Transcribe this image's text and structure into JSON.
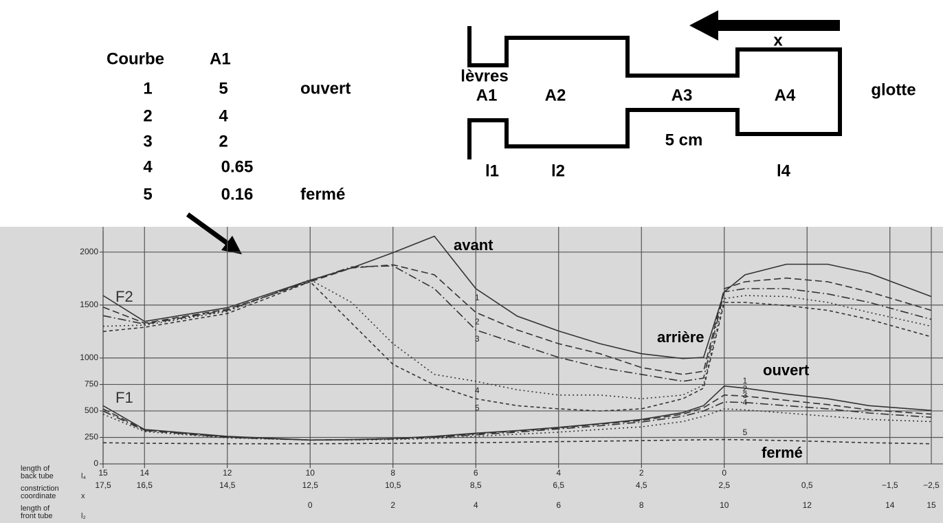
{
  "table": {
    "header": [
      "Courbe",
      "A1"
    ],
    "rows": [
      {
        "courbe": "1",
        "a1": "5",
        "state": "ouvert"
      },
      {
        "courbe": "2",
        "a1": "4"
      },
      {
        "courbe": "3",
        "a1": "2"
      },
      {
        "courbe": "4",
        "a1": "0.65"
      },
      {
        "courbe": "5",
        "a1": "0.16",
        "state": "fermé"
      }
    ]
  },
  "diagram": {
    "lips": "lèvres",
    "glottis": "glotte",
    "direction": "x",
    "length": "5 cm",
    "areas": [
      "A1",
      "A2",
      "A3",
      "A4"
    ],
    "lengths": [
      "l1",
      "l2",
      "l4"
    ]
  },
  "chart_data": {
    "type": "line",
    "annotations": {
      "f2": "F2",
      "f1": "F1",
      "front": "avant",
      "back": "arrière",
      "open": "ouvert",
      "closed": "fermé"
    },
    "xlim": [
      17.5,
      -2.5
    ],
    "ylim": [
      0,
      2200
    ],
    "yticks": [
      0,
      250,
      500,
      750,
      1000,
      1500,
      2000
    ],
    "grid": true,
    "xticks": [
      {
        "value": 17.5,
        "label": "17,5"
      },
      {
        "value": 16.5,
        "label": "16,5"
      },
      {
        "value": 14.5,
        "label": "14,5"
      },
      {
        "value": 12.5,
        "label": "12,5"
      },
      {
        "value": 10.5,
        "label": "10,5"
      },
      {
        "value": 8.5,
        "label": "8,5"
      },
      {
        "value": 6.5,
        "label": "6,5"
      },
      {
        "value": 4.5,
        "label": "4,5"
      },
      {
        "value": 2.5,
        "label": "2,5"
      },
      {
        "value": 0.5,
        "label": "0,5"
      },
      {
        "value": -1.5,
        "label": "−1,5"
      },
      {
        "value": -2.5,
        "label": "−2,5"
      }
    ],
    "l4_ticks": [
      {
        "value": 17.5,
        "label": "15"
      },
      {
        "value": 16.5,
        "label": "14"
      },
      {
        "value": 14.5,
        "label": "12"
      },
      {
        "value": 12.5,
        "label": "10"
      },
      {
        "value": 10.5,
        "label": "8"
      },
      {
        "value": 8.5,
        "label": "6"
      },
      {
        "value": 6.5,
        "label": "4"
      },
      {
        "value": 4.5,
        "label": "2"
      },
      {
        "value": 2.5,
        "label": "0"
      }
    ],
    "l2_ticks": [
      {
        "value": 12.5,
        "label": "0"
      },
      {
        "value": 10.5,
        "label": "2"
      },
      {
        "value": 8.5,
        "label": "4"
      },
      {
        "value": 6.5,
        "label": "6"
      },
      {
        "value": 4.5,
        "label": "8"
      },
      {
        "value": 2.5,
        "label": "10"
      },
      {
        "value": 0.5,
        "label": "12"
      },
      {
        "value": -1.5,
        "label": "14"
      },
      {
        "value": -2.5,
        "label": "15"
      }
    ],
    "row_labels": [
      {
        "lines": [
          "length of",
          "back tube"
        ],
        "symbol": "l₄"
      },
      {
        "lines": [
          "constriction",
          "coordinate"
        ],
        "symbol": "x"
      },
      {
        "lines": [
          "length of",
          "front tube"
        ],
        "symbol": "l₂"
      }
    ],
    "x": [
      17.5,
      16.5,
      14.5,
      12.5,
      11.5,
      10.5,
      9.5,
      8.5,
      7.5,
      6.5,
      5.5,
      4.5,
      3.5,
      3,
      2.5,
      2,
      1,
      0,
      -1,
      -2.5
    ],
    "series": [
      {
        "name": "1",
        "formant": "F2",
        "style": "solid",
        "color": "#333",
        "values": [
          1590,
          1345,
          1475,
          1735,
          1850,
          1995,
          2150,
          1655,
          1395,
          1255,
          1135,
          1040,
          995,
          1005,
          1625,
          1785,
          1885,
          1885,
          1800,
          1580
        ]
      },
      {
        "name": "2",
        "formant": "F2",
        "style": "dashed",
        "color": "#333",
        "values": [
          1480,
          1330,
          1460,
          1720,
          1850,
          1880,
          1785,
          1430,
          1265,
          1135,
          1040,
          910,
          845,
          875,
          1655,
          1720,
          1755,
          1720,
          1625,
          1450
        ]
      },
      {
        "name": "3",
        "formant": "F2",
        "style": "dashdot",
        "color": "#333",
        "values": [
          1400,
          1320,
          1450,
          1730,
          1860,
          1870,
          1655,
          1265,
          1135,
          1005,
          910,
          845,
          780,
          810,
          1625,
          1655,
          1655,
          1605,
          1525,
          1365
        ]
      },
      {
        "name": "4",
        "formant": "F2",
        "style": "dotted",
        "color": "#333",
        "values": [
          1300,
          1310,
          1440,
          1740,
          1525,
          1135,
          845,
          780,
          700,
          650,
          650,
          615,
          650,
          745,
          1560,
          1590,
          1580,
          1525,
          1430,
          1300
        ]
      },
      {
        "name": "5",
        "formant": "F2",
        "style": "shortdash",
        "color": "#333",
        "values": [
          1250,
          1290,
          1420,
          1720,
          1330,
          940,
          745,
          615,
          550,
          520,
          500,
          520,
          615,
          715,
          1525,
          1525,
          1495,
          1450,
          1365,
          1200
        ]
      },
      {
        "name": "1",
        "formant": "F1",
        "style": "solid",
        "color": "#333",
        "values": [
          550,
          325,
          260,
          225,
          230,
          240,
          260,
          290,
          315,
          345,
          380,
          420,
          485,
          550,
          735,
          715,
          660,
          615,
          550,
          505
        ]
      },
      {
        "name": "2",
        "formant": "F1",
        "style": "dashed",
        "color": "#333",
        "values": [
          520,
          320,
          255,
          225,
          230,
          240,
          255,
          285,
          310,
          340,
          375,
          410,
          470,
          530,
          650,
          640,
          600,
          560,
          510,
          470
        ]
      },
      {
        "name": "3",
        "formant": "F1",
        "style": "dashdot",
        "color": "#333",
        "values": [
          500,
          315,
          250,
          225,
          228,
          235,
          250,
          275,
          300,
          330,
          360,
          395,
          450,
          500,
          585,
          580,
          550,
          520,
          480,
          440
        ]
      },
      {
        "name": "4",
        "formant": "F1",
        "style": "dotted",
        "color": "#333",
        "values": [
          470,
          305,
          245,
          225,
          225,
          230,
          240,
          260,
          280,
          300,
          325,
          350,
          400,
          450,
          520,
          510,
          480,
          450,
          420,
          400
        ]
      },
      {
        "name": "5",
        "formant": "F1",
        "style": "shortdash",
        "color": "#333",
        "values": [
          200,
          195,
          190,
          190,
          192,
          195,
          198,
          200,
          205,
          210,
          215,
          220,
          225,
          228,
          230,
          228,
          220,
          210,
          200,
          190
        ]
      }
    ]
  }
}
